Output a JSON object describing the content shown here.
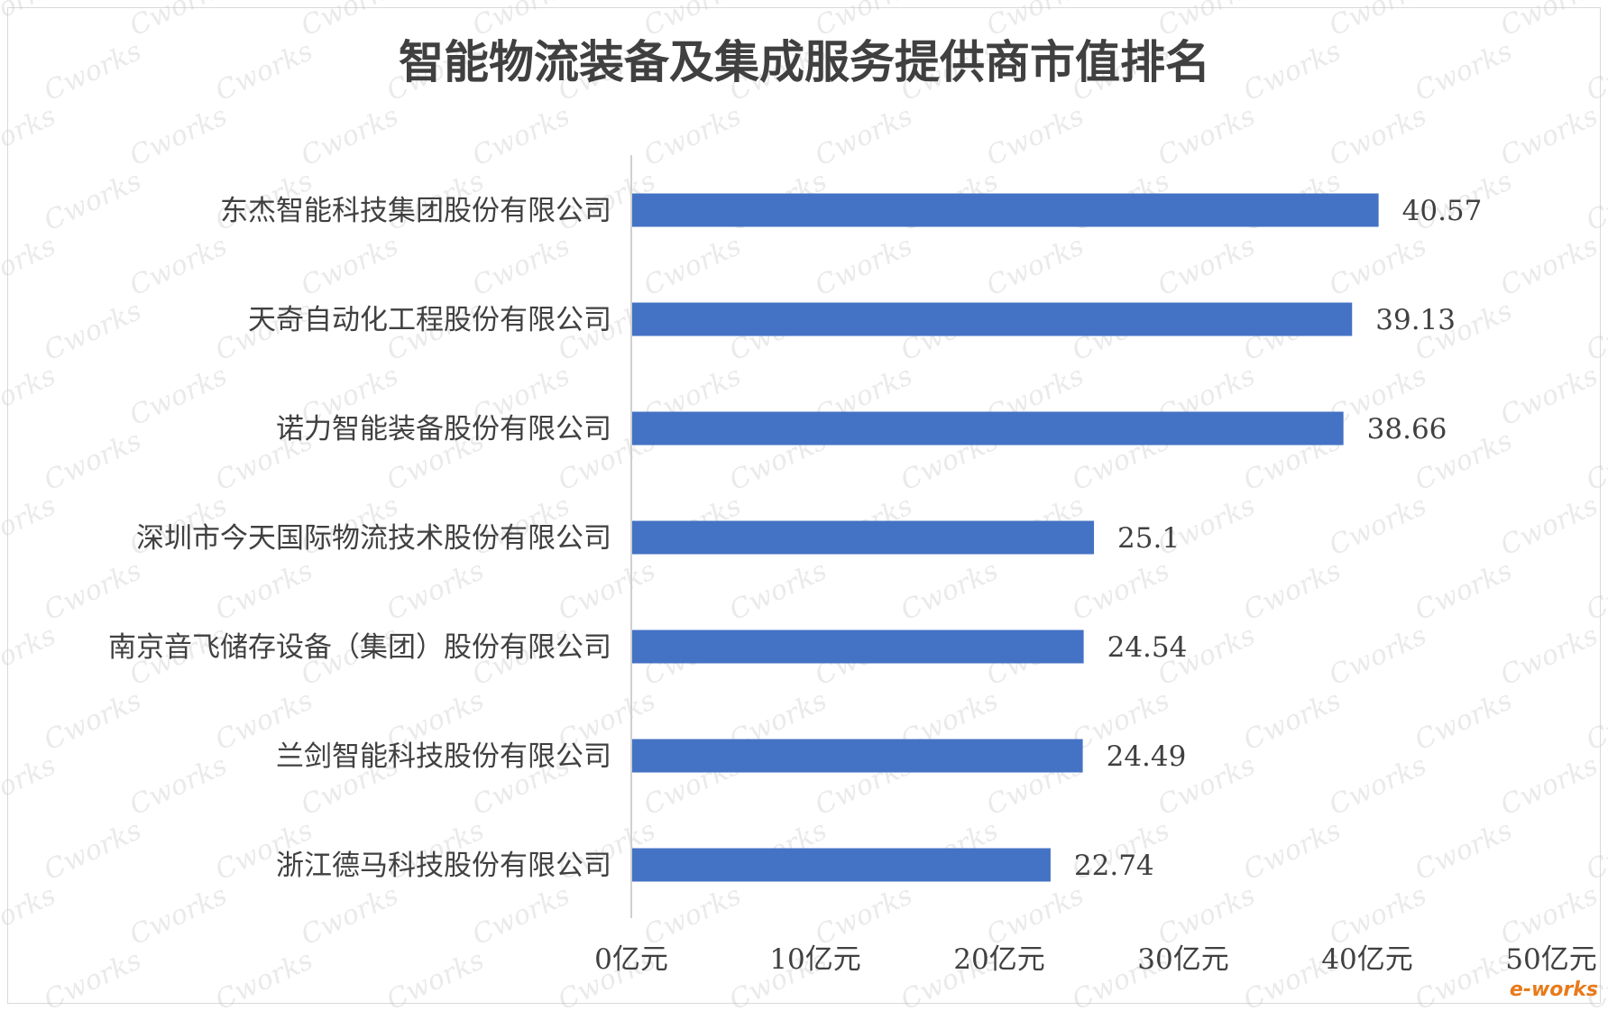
{
  "chart_data": {
    "type": "bar",
    "orientation": "horizontal",
    "title": "智能物流装备及集成服务提供商市值排名",
    "categories": [
      "东杰智能科技集团股份有限公司",
      "天奇自动化工程股份有限公司",
      "诺力智能装备股份有限公司",
      "深圳市今天国际物流技术股份有限公司",
      "南京音飞储存设备（集团）股份有限公司",
      "兰剑智能科技股份有限公司",
      "浙江德马科技股份有限公司"
    ],
    "values": [
      40.57,
      39.13,
      38.66,
      25.1,
      24.54,
      24.49,
      22.74
    ],
    "value_labels": [
      "40.57",
      "39.13",
      "38.66",
      "25.1",
      "24.54",
      "24.49",
      "22.74"
    ],
    "xlim": [
      0,
      50
    ],
    "xticks": [
      0,
      10,
      20,
      30,
      40,
      50
    ],
    "xtick_labels": [
      "0亿元",
      "10亿元",
      "20亿元",
      "30亿元",
      "40亿元",
      "50亿元"
    ],
    "xlabel": "",
    "ylabel": "",
    "grid": false,
    "legend": "none",
    "bar_color": "#4472c4"
  },
  "watermark": {
    "text": "Cworks",
    "logo": "e-works"
  }
}
